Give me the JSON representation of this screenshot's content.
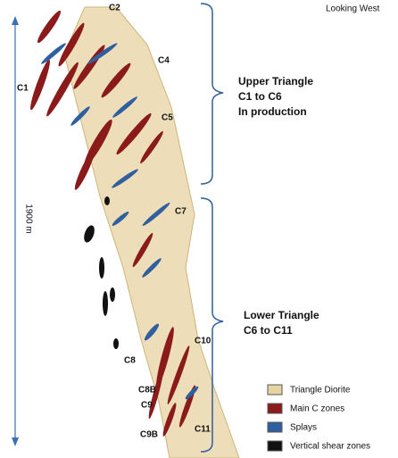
{
  "view_label": "Looking West",
  "scale": {
    "label": "1900 m"
  },
  "zone_labels": [
    "C2",
    "C4",
    "C1",
    "C5",
    "C7",
    "C10",
    "C8",
    "C8B",
    "C9",
    "C9B",
    "C11"
  ],
  "groups": [
    {
      "lines": [
        "Upper Triangle",
        "C1 to C6",
        "In production"
      ]
    },
    {
      "lines": [
        "Lower Triangle",
        "C6 to C11"
      ]
    }
  ],
  "legend": [
    "Triangle Diorite",
    "Main C zones",
    "Splays",
    "Vertical shear zones"
  ]
}
